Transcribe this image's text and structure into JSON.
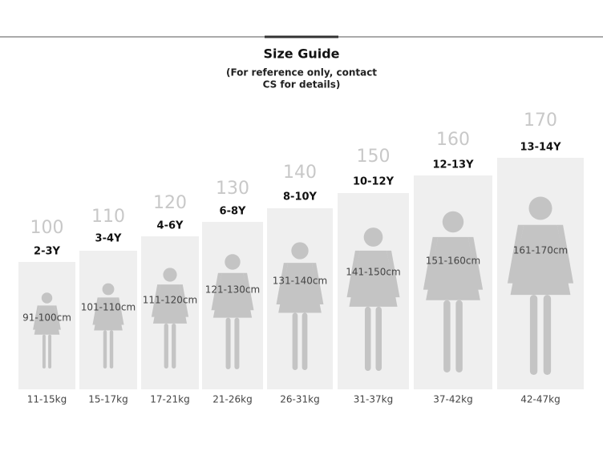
{
  "header": {
    "title": "Size Guide",
    "subtitle": [
      "(For reference only, contact",
      "CS for details)"
    ]
  },
  "sizes": [
    {
      "size": "100",
      "age": "2-3Y",
      "height": "91-100cm",
      "weight": "11-15kg"
    },
    {
      "size": "110",
      "age": "3-4Y",
      "height": "101-110cm",
      "weight": "15-17kg"
    },
    {
      "size": "120",
      "age": "4-6Y",
      "height": "111-120cm",
      "weight": "17-21kg"
    },
    {
      "size": "130",
      "age": "6-8Y",
      "height": "121-130cm",
      "weight": "21-26kg"
    },
    {
      "size": "140",
      "age": "8-10Y",
      "height": "131-140cm",
      "weight": "26-31kg"
    },
    {
      "size": "150",
      "age": "10-12Y",
      "height": "141-150cm",
      "weight": "31-37kg"
    },
    {
      "size": "160",
      "age": "12-13Y",
      "height": "151-160cm",
      "weight": "37-42kg"
    },
    {
      "size": "170",
      "age": "13-14Y",
      "height": "161-170cm",
      "weight": "42-47kg"
    }
  ]
}
